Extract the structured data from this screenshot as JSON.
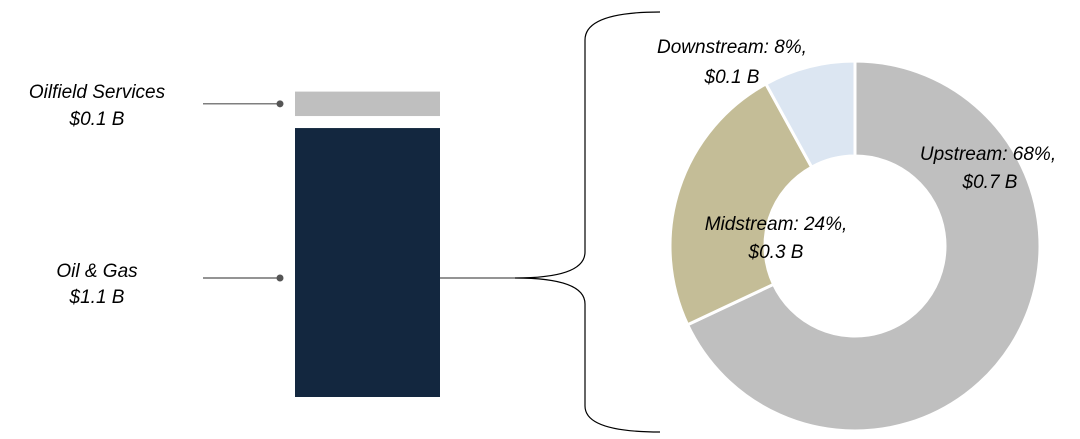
{
  "chart_data": [
    {
      "type": "bar",
      "stacked": true,
      "series": [
        {
          "name": "Oil & Gas",
          "color": "#13273f",
          "values": [
            1.1
          ],
          "value_labels": [
            "$1.1 B"
          ]
        },
        {
          "name": "Oilfield Services",
          "color": "#bfbfbf",
          "values": [
            0.1
          ],
          "value_labels": [
            "$0.1 B"
          ]
        }
      ]
    },
    {
      "type": "pie",
      "donut": true,
      "values": [
        68,
        24,
        8
      ],
      "value_labels": [
        "Upstream: 68%,",
        "Midstream: 24%,",
        "Downstream: 8%,"
      ],
      "amounts": [
        0.7,
        0.3,
        0.1
      ],
      "amount_labels": [
        "$0.7 B",
        "$0.3 B",
        "$0.1 B"
      ],
      "colors": [
        "#bfbfbf",
        "#c4bd97",
        "#dce6f2"
      ]
    }
  ]
}
